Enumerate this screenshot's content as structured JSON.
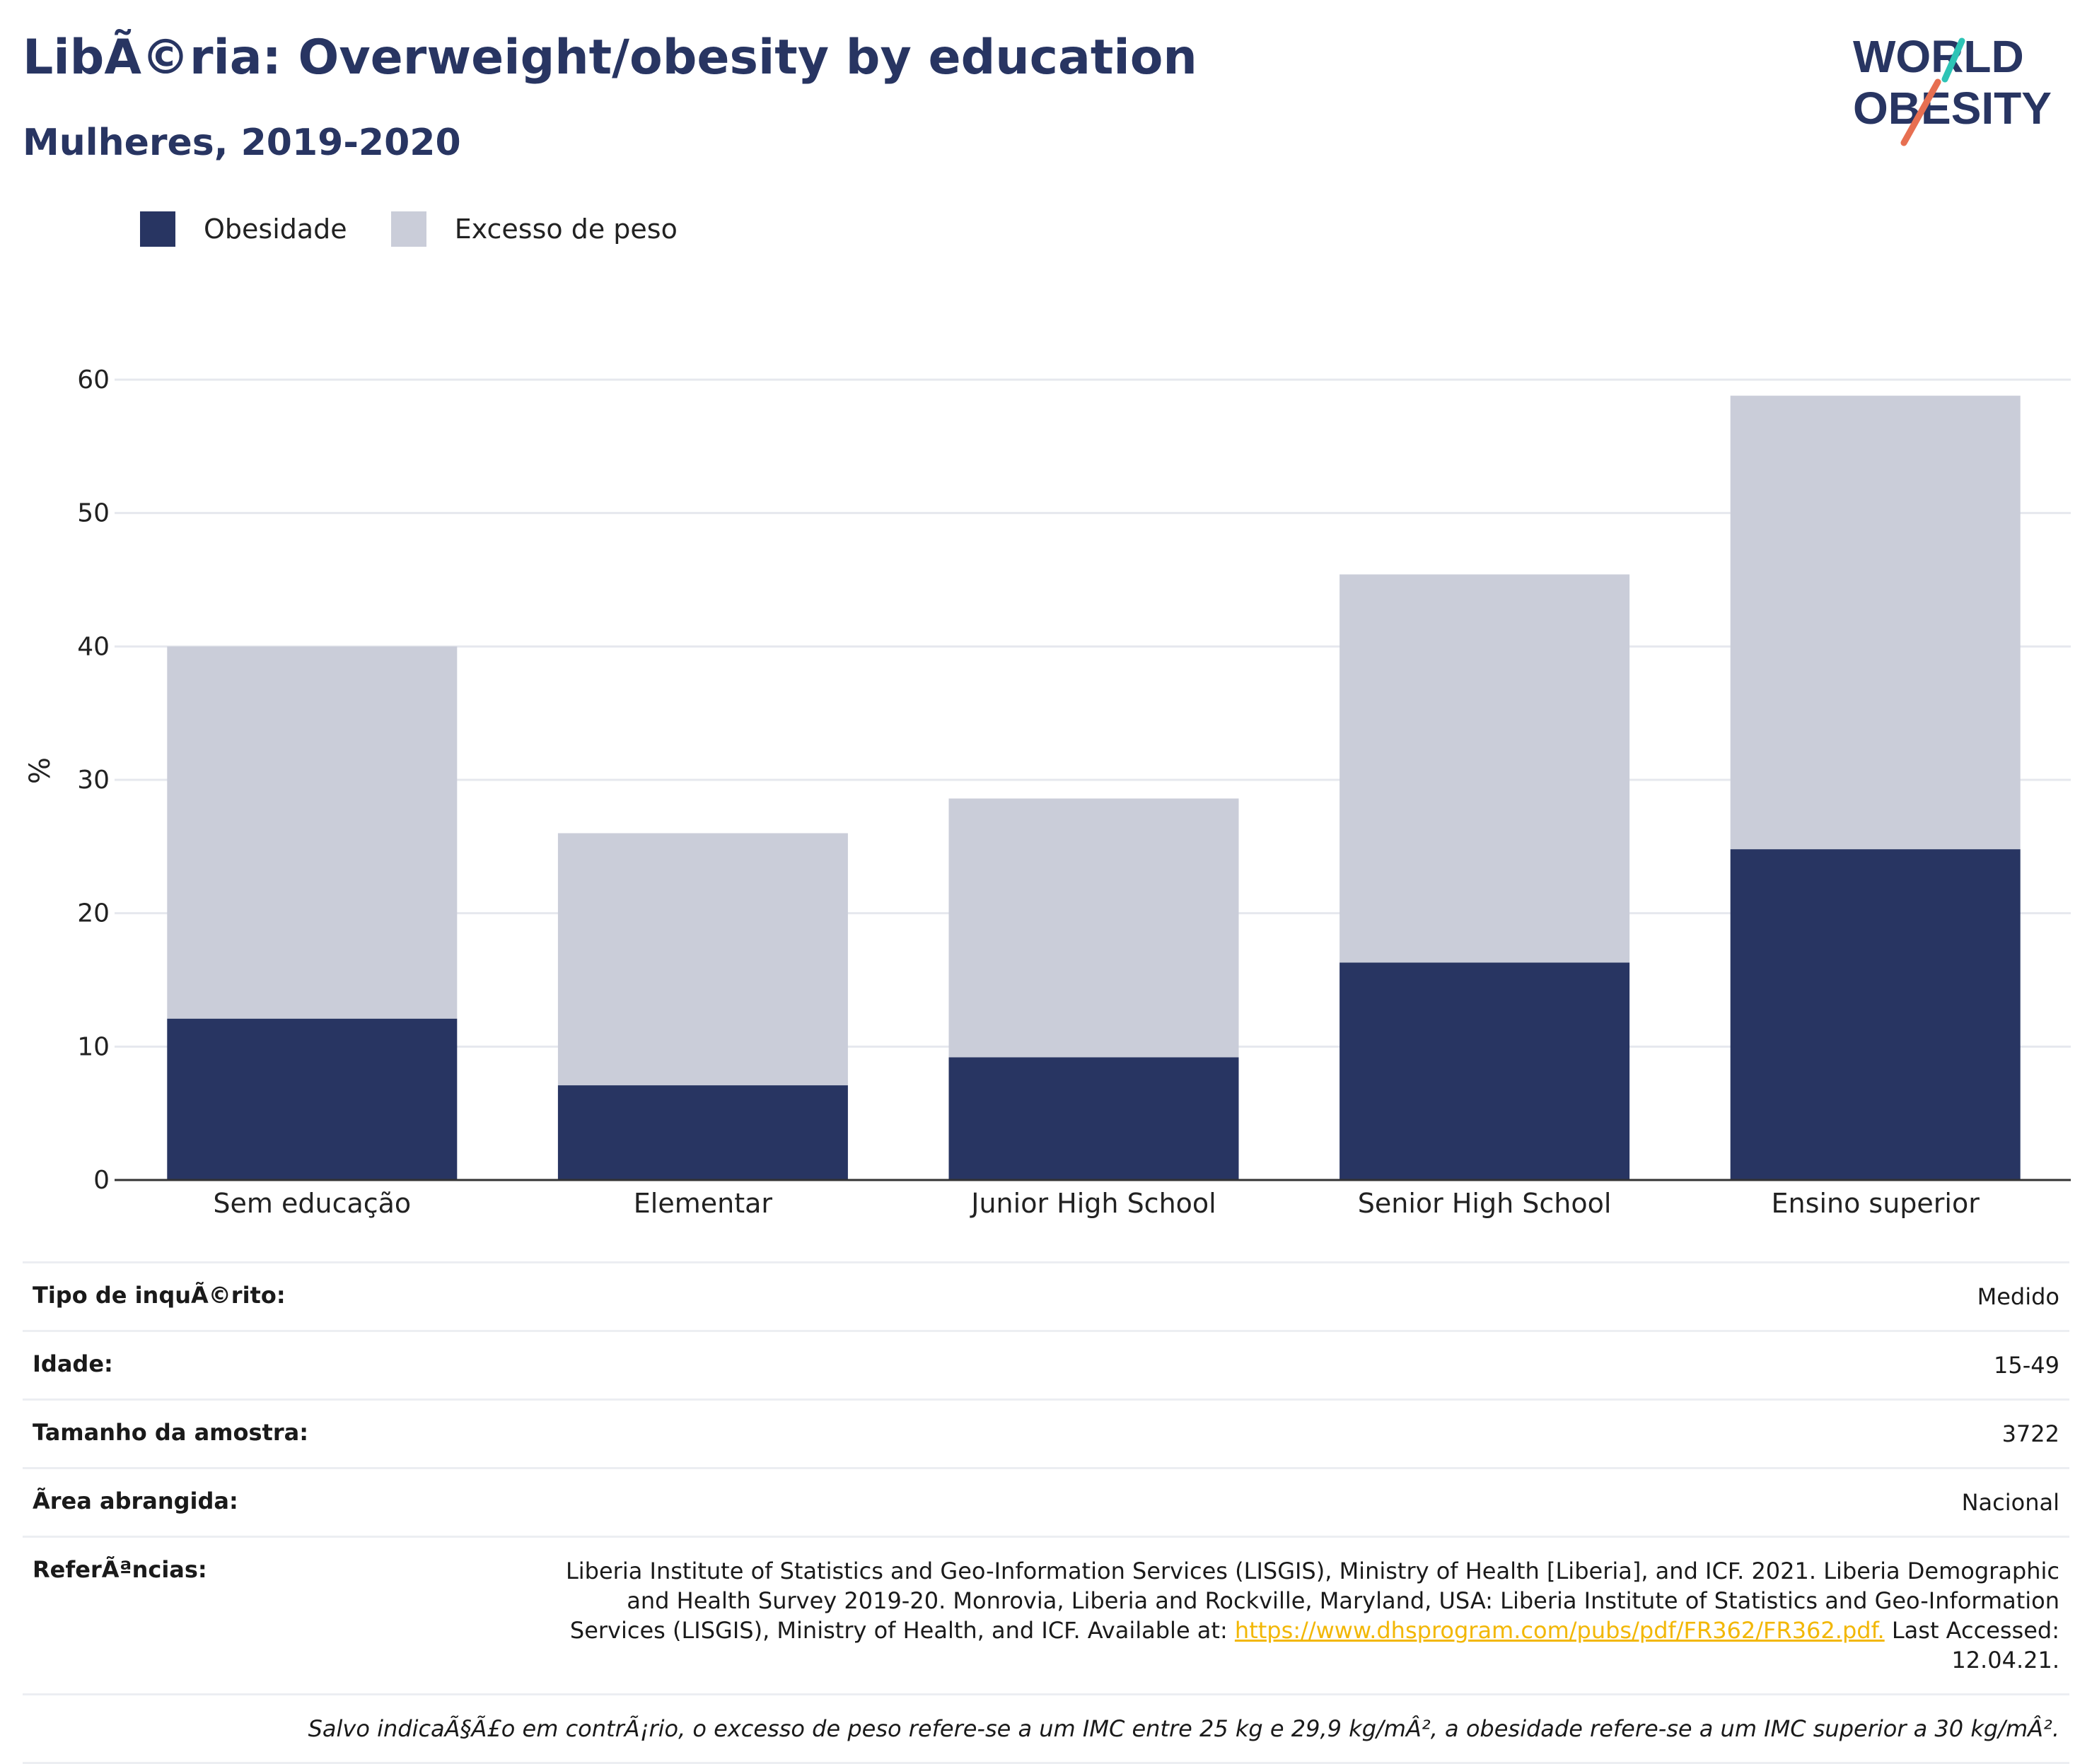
{
  "header": {
    "title": "LibÃ©ria: Overweight/obesity by education",
    "subtitle": "Mulheres, 2019-2020"
  },
  "logo": {
    "line1": "WORLD",
    "line2": "OBESITY",
    "accent_teal": "#2ec4b6",
    "accent_coral": "#e76f51"
  },
  "colors": {
    "obesity": "#283562",
    "overweight": "#cacdd9",
    "grid": "#e6e8ee",
    "axis": "#333333",
    "link": "#f2b705"
  },
  "chart_data": {
    "type": "bar",
    "stacked": true,
    "categories": [
      "Sem educação",
      "Elementar",
      "Junior High School",
      "Senior High School",
      "Ensino superior"
    ],
    "series": [
      {
        "name": "Obesidade",
        "values": [
          12.1,
          7.1,
          9.2,
          16.3,
          24.8
        ]
      },
      {
        "name": "Excesso de peso",
        "values": [
          27.9,
          18.9,
          19.4,
          29.1,
          34.0
        ]
      }
    ],
    "ylabel": "%",
    "ylim": [
      0,
      60
    ],
    "yticks": [
      0,
      10,
      20,
      30,
      40,
      50,
      60
    ],
    "grid": true,
    "legend": "top-left"
  },
  "info": [
    {
      "key": "Tipo de inquÃ©rito:",
      "value": "Medido"
    },
    {
      "key": "Idade:",
      "value": "15-49"
    },
    {
      "key": "Tamanho da amostra:",
      "value": "3722"
    },
    {
      "key": "Ã\u001area abrangida:",
      "value": "Nacional"
    }
  ],
  "references": {
    "key": "ReferÃªncias:",
    "text": "Liberia Institute of Statistics and Geo-Information Services (LISGIS), Ministry of Health [Liberia], and ICF. 2021. Liberia Demographic and Health Survey 2019-20. Monrovia, Liberia and Rockville, Maryland, USA: Liberia Institute of Statistics and Geo-Information Services (LISGIS), Ministry of Health, and ICF. Available at: ",
    "link": "https://www.dhsprogram.com/pubs/pdf/FR362/FR362.pdf.",
    "after": " Last Accessed: 12.04.21."
  },
  "note": "Salvo indicaÃ§Ã£o em contrÃ¡rio, o excesso de peso refere-se a um IMC entre 25 kg e 29,9 kg/mÂ², a obesidade refere-se a um IMC superior a 30 kg/mÂ²."
}
